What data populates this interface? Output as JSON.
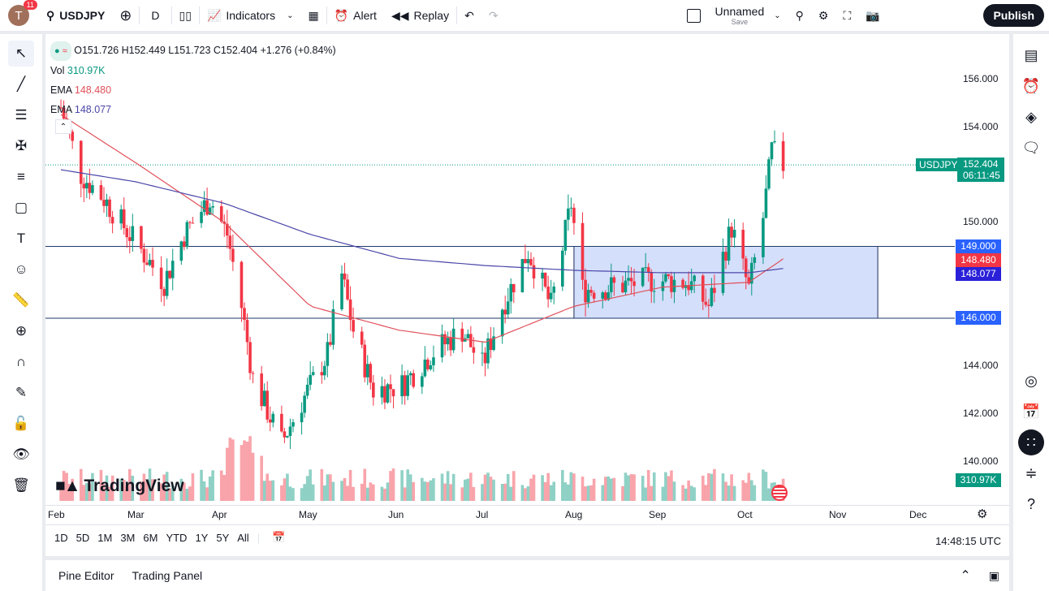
{
  "topbar": {
    "avatar": "T",
    "notifications": "11",
    "symbol": "USDJPY",
    "interval": "D",
    "indicators": "Indicators",
    "alert": "Alert",
    "replay": "Replay",
    "layout_name": "Unnamed",
    "layout_save": "Save",
    "publish": "Publish"
  },
  "legend": {
    "ohlc": "O151.726 H152.449 L151.723 C152.404 +1.276 (+0.84%)",
    "vol_label": "Vol",
    "vol_value": "310.97K",
    "ema1_label": "EMA",
    "ema1_value": "148.480",
    "ema2_label": "EMA",
    "ema2_value": "148.077"
  },
  "price_axis": {
    "labels": [
      "156.000",
      "154.000",
      "150.000",
      "144.000",
      "142.000",
      "140.000"
    ],
    "symbol_tag": "USDJPY",
    "last_price": "152.404",
    "countdown": "06:11:45",
    "line_149": "149.000",
    "ema_red": "148.480",
    "ema_blue": "148.077",
    "line_146": "146.000",
    "volume": "310.97K"
  },
  "time_axis": {
    "labels": [
      "Feb",
      "Mar",
      "Apr",
      "May",
      "Jun",
      "Jul",
      "Aug",
      "Sep",
      "Oct",
      "Nov",
      "Dec"
    ]
  },
  "ranges": [
    "1D",
    "5D",
    "1M",
    "3M",
    "6M",
    "YTD",
    "1Y",
    "5Y",
    "All"
  ],
  "clock": "14:48:15 UTC",
  "bottom": {
    "pine": "Pine Editor",
    "trading": "Trading Panel"
  },
  "watermark": "TradingView",
  "colors": {
    "up": "#089981",
    "down": "#f23645",
    "ema_red": "#e0505a",
    "ema_blue": "#4a47a8",
    "box": "#c9d7fb",
    "box_border": "#1e2a5a"
  },
  "chart_data": {
    "type": "candlestick",
    "symbol": "USDJPY",
    "interval": "D",
    "ylim": [
      139,
      157
    ],
    "approx_closes": [
      [
        "2025-02-03",
        154.8
      ],
      [
        "2025-02-10",
        152.0
      ],
      [
        "2025-02-18",
        151.0
      ],
      [
        "2025-02-27",
        149.5
      ],
      [
        "2025-03-11",
        147.5
      ],
      [
        "2025-03-18",
        149.5
      ],
      [
        "2025-03-27",
        151.0
      ],
      [
        "2025-04-02",
        149.5
      ],
      [
        "2025-04-07",
        146.5
      ],
      [
        "2025-04-11",
        143.5
      ],
      [
        "2025-04-21",
        140.8
      ],
      [
        "2025-04-28",
        142.5
      ],
      [
        "2025-05-07",
        144.5
      ],
      [
        "2025-05-12",
        147.8
      ],
      [
        "2025-05-16",
        145.5
      ],
      [
        "2025-05-23",
        143.0
      ],
      [
        "2025-06-02",
        143.2
      ],
      [
        "2025-06-12",
        144.5
      ],
      [
        "2025-06-23",
        145.5
      ],
      [
        "2025-06-30",
        144.0
      ],
      [
        "2025-07-07",
        146.5
      ],
      [
        "2025-07-16",
        148.8
      ],
      [
        "2025-07-24",
        146.5
      ],
      [
        "2025-07-31",
        150.8
      ],
      [
        "2025-08-04",
        147.2
      ],
      [
        "2025-08-14",
        147.3
      ],
      [
        "2025-08-28",
        147.6
      ],
      [
        "2025-09-10",
        147.5
      ],
      [
        "2025-09-17",
        146.5
      ],
      [
        "2025-09-25",
        149.8
      ],
      [
        "2025-10-01",
        147.2
      ],
      [
        "2025-10-06",
        150.2
      ],
      [
        "2025-10-09",
        153.0
      ],
      [
        "2025-10-13",
        152.4
      ]
    ],
    "ema_red_approx": [
      [
        "2025-02-03",
        154.5
      ],
      [
        "2025-03-01",
        152.5
      ],
      [
        "2025-04-01",
        150.0
      ],
      [
        "2025-05-01",
        146.5
      ],
      [
        "2025-06-01",
        145.5
      ],
      [
        "2025-07-01",
        145.0
      ],
      [
        "2025-08-01",
        146.5
      ],
      [
        "2025-09-01",
        147.3
      ],
      [
        "2025-10-01",
        147.5
      ],
      [
        "2025-10-13",
        148.48
      ]
    ],
    "ema_blue_approx": [
      [
        "2025-02-03",
        152.2
      ],
      [
        "2025-03-01",
        151.7
      ],
      [
        "2025-04-01",
        150.8
      ],
      [
        "2025-05-01",
        149.5
      ],
      [
        "2025-06-01",
        148.5
      ],
      [
        "2025-07-01",
        148.2
      ],
      [
        "2025-08-01",
        148.0
      ],
      [
        "2025-09-01",
        147.9
      ],
      [
        "2025-10-01",
        147.9
      ],
      [
        "2025-10-13",
        148.077
      ]
    ],
    "horizontal_lines": [
      149.0,
      146.0
    ],
    "range_box": {
      "from": "2025-08-01",
      "to": "2025-11-15",
      "top": 149.0,
      "bottom": 146.0
    }
  }
}
